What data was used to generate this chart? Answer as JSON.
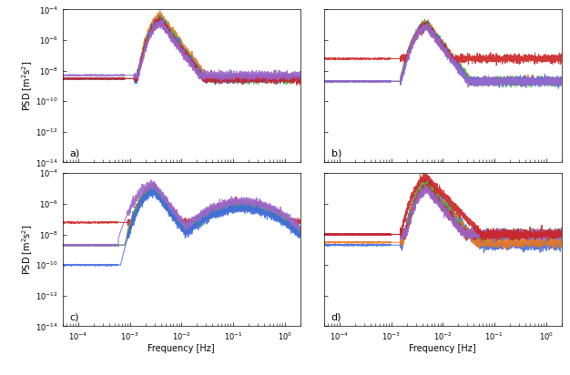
{
  "colors_a": [
    "#e87820",
    "#3cb44b",
    "#4169e1",
    "#cc2222",
    "#9966cc"
  ],
  "colors_b": [
    "#e87820",
    "#3cb44b",
    "#4169e1",
    "#cc2222",
    "#9966cc"
  ],
  "colors_c": [
    "#e87820",
    "#3cb44b",
    "#4169e1",
    "#cc2222",
    "#9966cc"
  ],
  "colors_d": [
    "#e87820",
    "#3cb44b",
    "#4169e1",
    "#cc2222",
    "#9966cc"
  ],
  "xlim": [
    5e-05,
    2.0
  ],
  "ylim": [
    1e-14,
    0.0001
  ],
  "xlabel": "Frequency [Hz]",
  "ylabel": "PSD [m²s²]",
  "panel_labels": [
    "a)",
    "b)",
    "c)",
    "d)"
  ]
}
